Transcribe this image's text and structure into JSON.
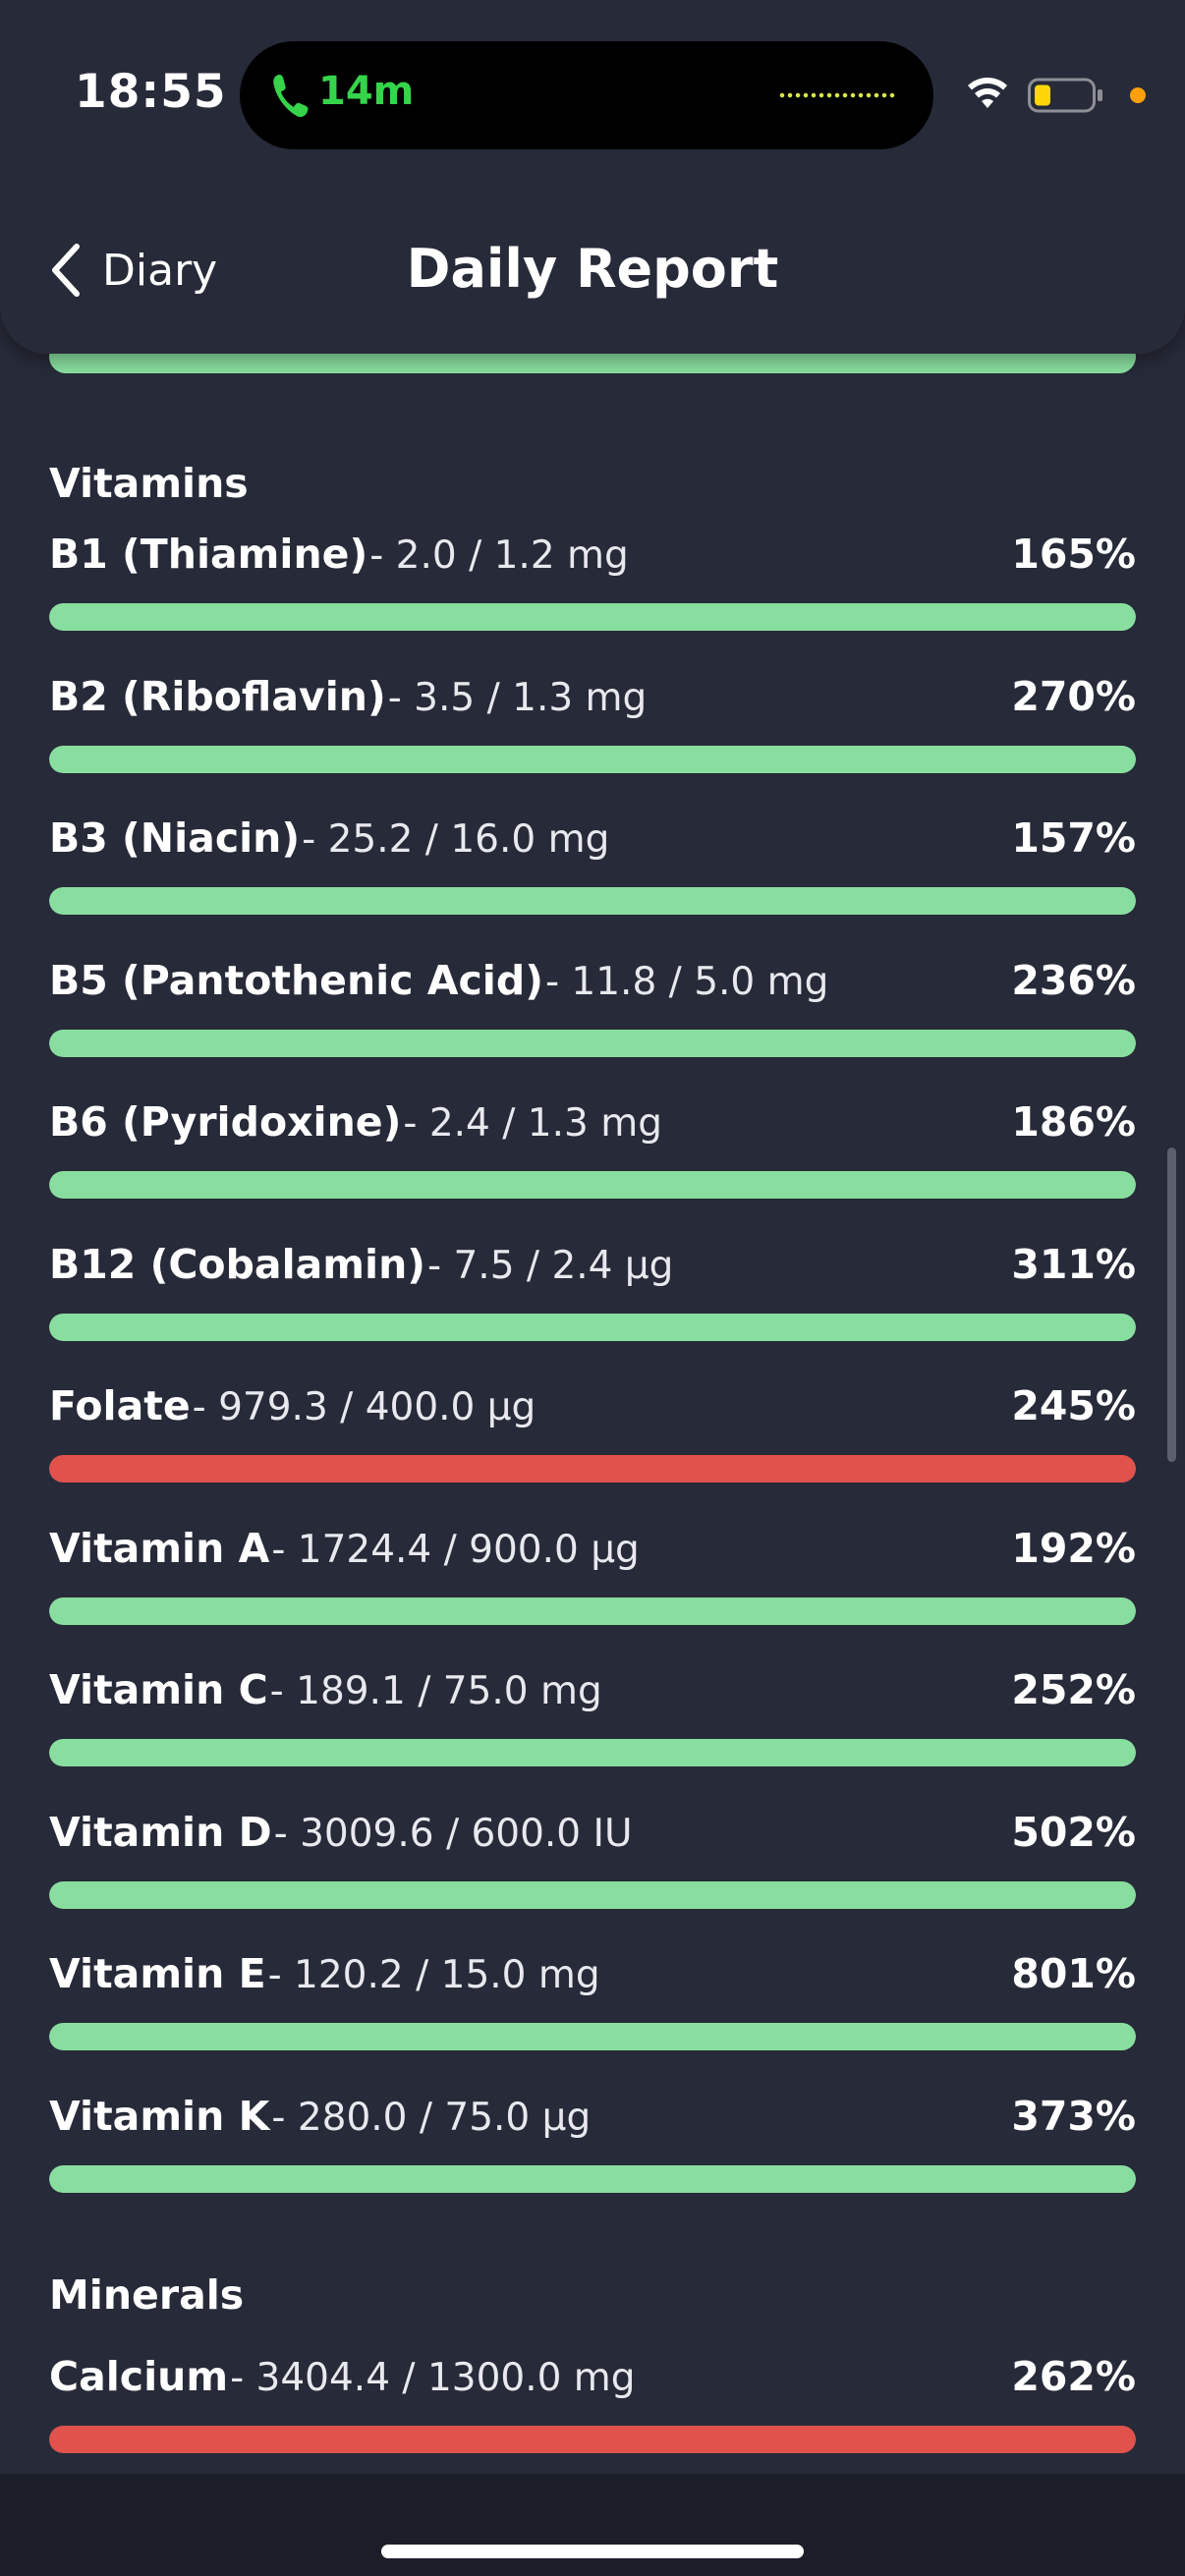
{
  "status_bar": {
    "time": "18:55",
    "call_duration": "14m",
    "call_icon": "phone-icon",
    "wifi_icon": "wifi-icon",
    "battery_icon": "battery-low-icon",
    "battery_level": 0.25,
    "colors": {
      "call": "#35d44b",
      "waveform": "#d7e84a",
      "battery": "#ffd60a",
      "dot": "#ff9f0a"
    }
  },
  "nav": {
    "back_label": "Diary",
    "back_icon": "chevron-left-icon",
    "title": "Daily Report"
  },
  "colors": {
    "ok": "#88de9e",
    "over": "#e0524b",
    "background": "#272a38"
  },
  "sections": [
    {
      "title": "Vitamins",
      "items": [
        {
          "name": "B1 (Thiamine)",
          "detail": "- 2.0 / 1.2 mg",
          "percent": "165%",
          "status": "ok",
          "fill": 1.0
        },
        {
          "name": "B2 (Riboflavin)",
          "detail": "- 3.5 / 1.3 mg",
          "percent": "270%",
          "status": "ok",
          "fill": 1.0
        },
        {
          "name": "B3 (Niacin)",
          "detail": "- 25.2 / 16.0 mg",
          "percent": "157%",
          "status": "ok",
          "fill": 1.0
        },
        {
          "name": "B5 (Pantothenic Acid)",
          "detail": "- 11.8 / 5.0 mg",
          "percent": "236%",
          "status": "ok",
          "fill": 1.0
        },
        {
          "name": "B6 (Pyridoxine)",
          "detail": "- 2.4 / 1.3 mg",
          "percent": "186%",
          "status": "ok",
          "fill": 1.0
        },
        {
          "name": "B12 (Cobalamin)",
          "detail": "- 7.5 / 2.4 µg",
          "percent": "311%",
          "status": "ok",
          "fill": 1.0
        },
        {
          "name": "Folate",
          "detail": "- 979.3 / 400.0 µg",
          "percent": "245%",
          "status": "over",
          "fill": 1.0
        },
        {
          "name": "Vitamin A",
          "detail": "- 1724.4 / 900.0 µg",
          "percent": "192%",
          "status": "ok",
          "fill": 1.0
        },
        {
          "name": "Vitamin C",
          "detail": "- 189.1 / 75.0 mg",
          "percent": "252%",
          "status": "ok",
          "fill": 1.0
        },
        {
          "name": "Vitamin D",
          "detail": "- 3009.6 / 600.0 IU",
          "percent": "502%",
          "status": "ok",
          "fill": 1.0
        },
        {
          "name": "Vitamin E",
          "detail": "- 120.2 / 15.0 mg",
          "percent": "801%",
          "status": "ok",
          "fill": 1.0
        },
        {
          "name": "Vitamin K",
          "detail": "- 280.0 / 75.0 µg",
          "percent": "373%",
          "status": "ok",
          "fill": 1.0
        }
      ]
    },
    {
      "title": "Minerals",
      "items": [
        {
          "name": "Calcium",
          "detail": "- 3404.4 / 1300.0 mg",
          "percent": "262%",
          "status": "over",
          "fill": 1.0
        }
      ]
    }
  ]
}
